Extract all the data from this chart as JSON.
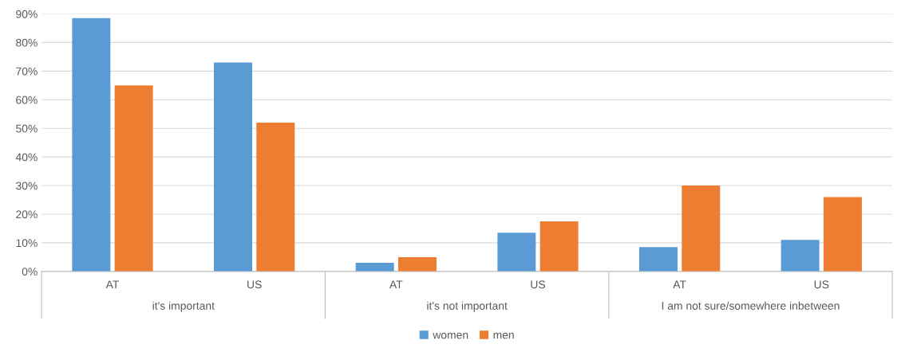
{
  "chart_data": {
    "type": "bar",
    "categories": [
      "AT",
      "US",
      "AT",
      "US",
      "AT",
      "US"
    ],
    "series": [
      {
        "name": "women",
        "color": "#5b9bd5",
        "values": [
          88.5,
          73,
          3,
          13.5,
          8.5,
          11
        ]
      },
      {
        "name": "men",
        "color": "#ed7d31",
        "values": [
          65,
          52,
          5,
          17.5,
          30,
          26
        ]
      }
    ],
    "annotations": [
      "it's important",
      "it's not important",
      "I am not sure/somewhere inbetween"
    ],
    "ylim": [
      0,
      90
    ],
    "yticks": [
      {
        "value": 0,
        "label": "0%"
      },
      {
        "value": 10,
        "label": "10%"
      },
      {
        "value": 20,
        "label": "20%"
      },
      {
        "value": 30,
        "label": "30%"
      },
      {
        "value": 40,
        "label": "40%"
      },
      {
        "value": 50,
        "label": "50%"
      },
      {
        "value": 60,
        "label": "60%"
      },
      {
        "value": 70,
        "label": "70%"
      },
      {
        "value": 80,
        "label": "80%"
      },
      {
        "value": 90,
        "label": "90%"
      }
    ],
    "grid": "y",
    "legend": "bottom"
  }
}
